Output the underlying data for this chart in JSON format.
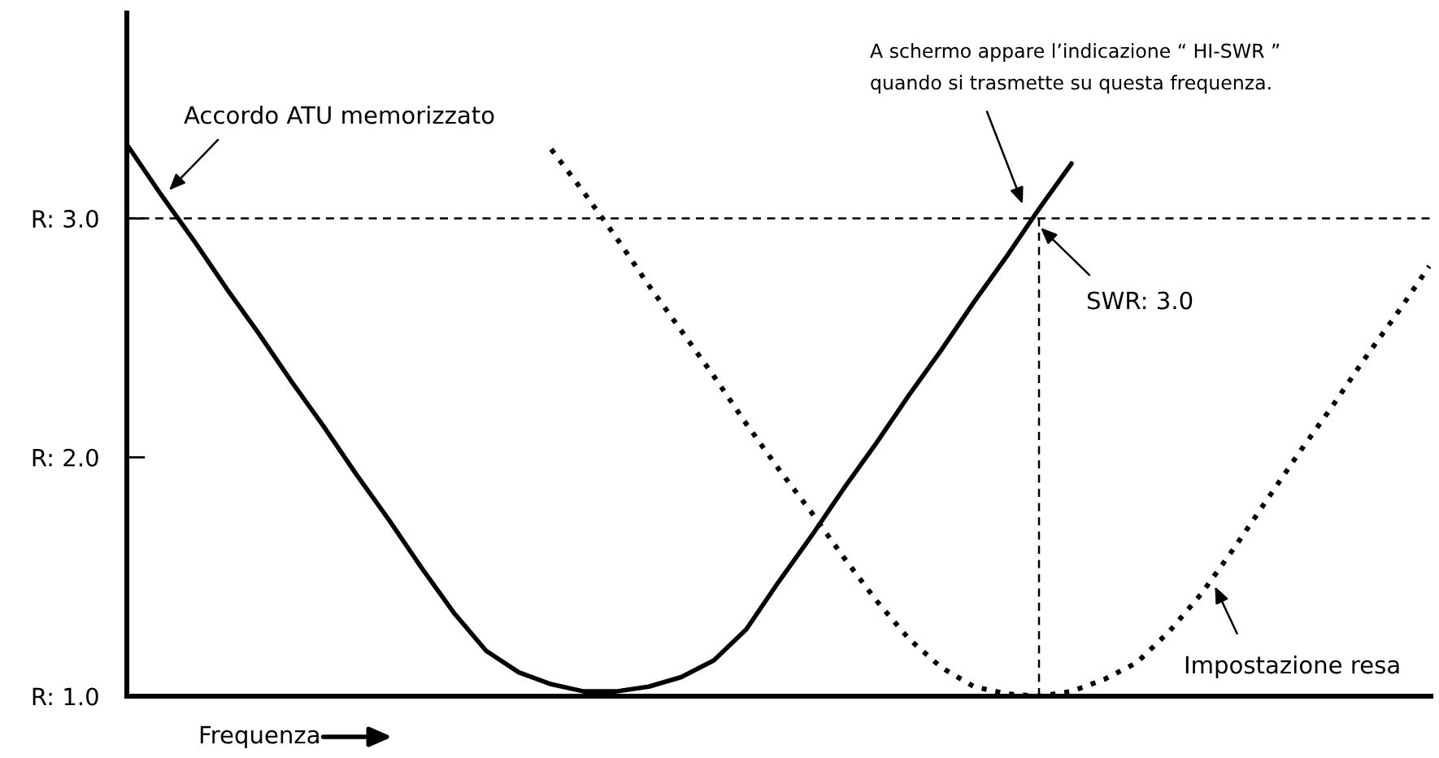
{
  "chart_data": {
    "type": "line",
    "xlabel": "Frequenza",
    "categories": [
      null,
      null,
      null,
      null,
      null,
      null,
      null,
      null,
      null,
      null,
      null,
      null,
      null,
      null,
      null,
      null,
      null,
      null,
      null,
      null,
      null,
      null,
      null,
      null,
      null,
      null,
      null,
      null,
      null,
      null,
      null,
      null,
      null,
      null,
      null,
      null,
      null,
      null,
      null,
      null,
      null
    ],
    "series": [
      {
        "color": "#000000",
        "line_style": "solid",
        "values": [
          3.3,
          3.1,
          2.91,
          2.71,
          2.52,
          2.32,
          2.13,
          1.93,
          1.74,
          1.54,
          1.35,
          1.19,
          1.1,
          1.05,
          1.02,
          1.02,
          1.04,
          1.08,
          1.15,
          1.28,
          1.48,
          1.67,
          1.87,
          2.06,
          2.26,
          2.45,
          2.65,
          2.84,
          3.04,
          3.23,
          null,
          null,
          null,
          null,
          null,
          null,
          null,
          null,
          null,
          null,
          null
        ]
      },
      {
        "color": "#000000",
        "line_style": "dotted",
        "values": [
          null,
          null,
          null,
          null,
          null,
          null,
          null,
          null,
          null,
          null,
          null,
          null,
          null,
          3.29,
          3.11,
          2.92,
          2.72,
          2.53,
          2.34,
          2.14,
          1.95,
          1.77,
          1.58,
          1.4,
          1.24,
          1.12,
          1.04,
          1.01,
          1.0,
          1.02,
          1.07,
          1.14,
          1.27,
          1.43,
          1.62,
          1.82,
          2.02,
          2.21,
          2.41,
          2.6,
          2.8
        ]
      }
    ],
    "ylim": [
      1.0,
      3.86
    ],
    "yticks": [
      {
        "value": 1.0,
        "label": "R: 1.0"
      },
      {
        "value": 2.0,
        "label": "R: 2.0"
      },
      {
        "value": 3.0,
        "label": "R: 3.0"
      }
    ],
    "ref_lines": [
      {
        "axis": "y",
        "value": 3.0,
        "line_style": "dashed",
        "color": "#000000"
      }
    ],
    "annotations": [
      "Accordo ATU memorizzato",
      "A schermo appare l’indicazione “ HI-SWR ”\nquando si trasmette su questa frequenza.",
      "SWR: 3.0",
      "Impostazione resa"
    ],
    "tick_labels": "y",
    "grid": false,
    "marker": "none"
  }
}
